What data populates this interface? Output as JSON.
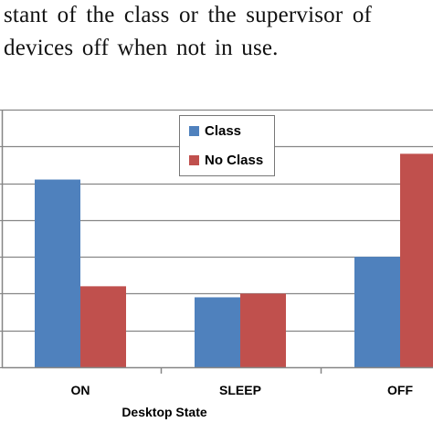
{
  "text": {
    "line1": "stant of the class or the supervisor of",
    "line2": "devices off when not in use."
  },
  "colors": {
    "class": "#4f81bd",
    "no_class": "#c0504d",
    "gridline": "#868686",
    "axis": "#868686"
  },
  "chart_data": {
    "type": "bar",
    "categories": [
      "ON",
      "SLEEP",
      "OFF"
    ],
    "series": [
      {
        "name": "Class",
        "values": [
          5.1,
          1.9,
          3.0
        ]
      },
      {
        "name": "No Class",
        "values": [
          2.2,
          2.0,
          5.8
        ]
      }
    ],
    "xlabel": "Desktop State",
    "ylabel": "",
    "ylim": [
      0,
      7
    ],
    "grid": true,
    "legend_position": "top-center"
  }
}
